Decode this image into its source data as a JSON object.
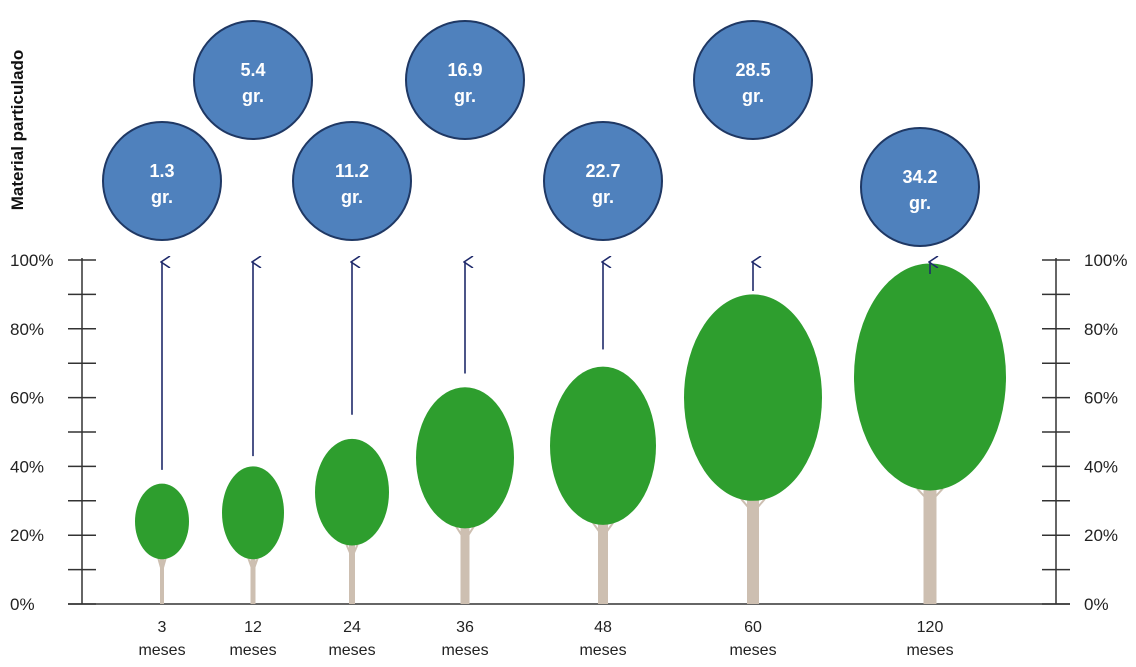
{
  "chart_data": {
    "type": "scatter",
    "ylabel": "Material particulado",
    "y_ticks": [
      "0%",
      "20%",
      "40%",
      "60%",
      "80%",
      "100%"
    ],
    "ylim": [
      0,
      100
    ],
    "categories": [
      {
        "line1": "3",
        "line2": "meses"
      },
      {
        "line1": "12",
        "line2": "meses"
      },
      {
        "line1": "24",
        "line2": "meses"
      },
      {
        "line1": "36",
        "line2": "meses"
      },
      {
        "line1": "48",
        "line2": "meses"
      },
      {
        "line1": "60",
        "line2": "meses"
      },
      {
        "line1": "120",
        "line2": "meses"
      }
    ],
    "values": [
      {
        "value": "1.3",
        "unit": "gr."
      },
      {
        "value": "5.4",
        "unit": "gr."
      },
      {
        "value": "11.2",
        "unit": "gr."
      },
      {
        "value": "16.9",
        "unit": "gr."
      },
      {
        "value": "22.7",
        "unit": "gr."
      },
      {
        "value": "28.5",
        "unit": "gr."
      },
      {
        "value": "34.2",
        "unit": "gr."
      }
    ],
    "crown_ranges_pct": [
      [
        13,
        35
      ],
      [
        13,
        40
      ],
      [
        17,
        48
      ],
      [
        22,
        63
      ],
      [
        23,
        69
      ],
      [
        30,
        90
      ],
      [
        33,
        99
      ]
    ],
    "arrow_ranges_pct": [
      [
        39,
        100
      ],
      [
        43,
        100
      ],
      [
        55,
        100
      ],
      [
        67,
        100
      ],
      [
        74,
        100
      ],
      [
        91,
        100
      ],
      [
        100,
        100
      ]
    ],
    "colors": {
      "bubble_fill": "#4F81BD",
      "bubble_stroke": "#1F3864",
      "crown": "#2E9E2E",
      "trunk": "#CDBFB1",
      "arrow": "#1F2A6B",
      "axis": "#333333"
    },
    "grid": false
  }
}
